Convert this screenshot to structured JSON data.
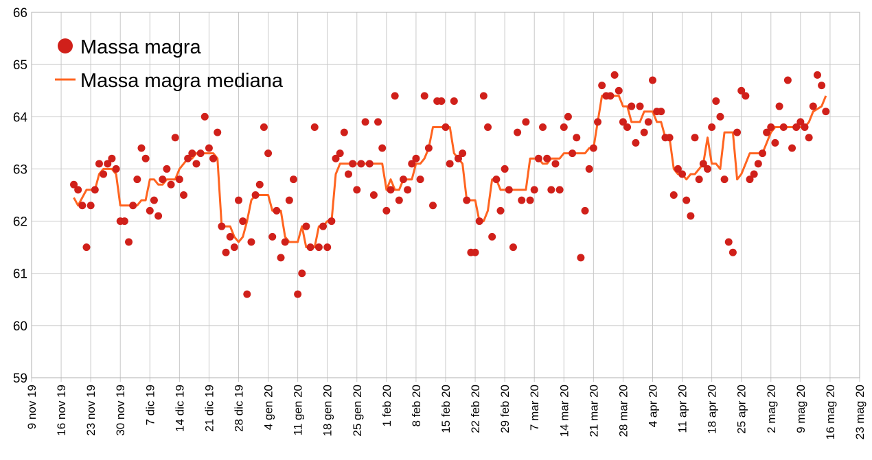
{
  "chart_data": {
    "type": "scatter",
    "title": "",
    "xlabel": "",
    "ylabel": "",
    "ylim": [
      59,
      66
    ],
    "y_ticks": [
      "59",
      "60",
      "61",
      "62",
      "63",
      "64",
      "65",
      "66"
    ],
    "x_start_date": "2019-11-09",
    "x_tick_step_days": 7,
    "x_tick_labels": [
      "9 nov 19",
      "16 nov 19",
      "23 nov 19",
      "30 nov 19",
      "7 dic 19",
      "14 dic 19",
      "21 dic 19",
      "28 dic 19",
      "4 gen 20",
      "11 gen 20",
      "18 gen 20",
      "25 gen 20",
      "1 feb 20",
      "8 feb 20",
      "15 feb 20",
      "22 feb 20",
      "29 feb 20",
      "7 mar 20",
      "14 mar 20",
      "21 mar 20",
      "28 mar 20",
      "4 apr 20",
      "11 apr 20",
      "18 apr 20",
      "25 apr 20",
      "2 mag 20",
      "9 mag 20",
      "16 mag 20",
      "23 mag 20"
    ],
    "grid": true,
    "legend_position": "top-left",
    "series": [
      {
        "name": "Massa magra",
        "kind": "points",
        "color": "#d0201a",
        "first_day_offset": 10,
        "step_days": 1,
        "values": [
          62.7,
          62.6,
          62.3,
          61.5,
          62.3,
          62.6,
          63.1,
          62.9,
          63.1,
          63.2,
          63.0,
          62.0,
          62.0,
          61.6,
          62.3,
          62.8,
          63.4,
          63.2,
          62.2,
          62.4,
          62.1,
          62.8,
          63.0,
          62.7,
          63.6,
          62.8,
          62.5,
          63.2,
          63.3,
          63.1,
          63.3,
          64.0,
          63.4,
          63.2,
          63.7,
          61.9,
          61.4,
          61.7,
          61.5,
          62.4,
          62.0,
          60.6,
          61.6,
          62.5,
          62.7,
          63.8,
          63.3,
          61.7,
          62.2,
          61.3,
          61.6,
          62.4,
          62.8,
          60.6,
          61.0,
          61.9,
          61.5,
          63.8,
          61.5,
          61.9,
          61.5,
          62.0,
          63.2,
          63.3,
          63.7,
          62.9,
          63.1,
          62.6,
          63.1,
          63.9,
          63.1,
          62.5,
          63.9,
          63.4,
          62.2,
          62.6,
          64.4,
          62.4,
          62.8,
          62.6,
          63.1,
          63.2,
          62.8,
          64.4,
          63.4,
          62.3,
          64.3,
          64.3,
          63.8,
          63.1,
          64.3,
          63.2,
          63.3,
          62.4,
          61.4,
          61.4,
          62.0,
          64.4,
          63.8,
          61.7,
          62.8,
          62.2,
          63.0,
          62.6,
          61.5,
          63.7,
          62.4,
          63.9,
          62.4,
          62.6,
          63.2,
          63.8,
          63.2,
          62.6,
          63.1,
          62.6,
          63.8,
          64.0,
          63.3,
          63.6,
          61.3,
          62.2,
          63.0,
          63.4,
          63.9,
          64.6,
          64.4,
          64.4,
          64.8,
          64.5,
          63.9,
          63.8,
          64.2,
          63.5,
          64.2,
          63.7,
          63.9,
          64.7,
          64.1,
          64.1,
          63.6,
          63.6,
          62.5,
          63.0,
          62.9,
          62.4,
          62.1,
          63.6,
          62.8,
          63.1,
          63.0,
          63.8,
          64.3,
          64.0,
          62.8,
          61.6,
          61.4,
          63.7,
          64.5,
          64.4,
          62.8,
          62.9,
          63.1,
          63.3,
          63.7,
          63.8,
          63.5,
          64.2,
          63.8,
          64.7,
          63.4,
          63.8,
          63.9,
          63.8,
          63.6,
          64.2,
          64.8,
          64.6,
          64.1
        ]
      },
      {
        "name": "Massa magra mediana",
        "kind": "line",
        "color": "#ff6420",
        "median_window_days": 7
      }
    ]
  }
}
